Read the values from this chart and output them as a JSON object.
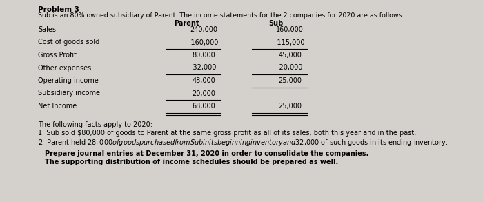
{
  "title": "Problem 3",
  "subtitle": "Sub is an 80% owned subsidiary of Parent. The income statements for the 2 companies for 2020 are as follows:",
  "col_header_parent": "Parent",
  "col_header_sub": "Sub",
  "row_labels": [
    "Sales",
    "Cost of goods sold",
    "Gross Profit",
    "Other expenses",
    "Operating income",
    "Subsidiary income",
    "Net Income"
  ],
  "parent_values": [
    "240,000",
    "-160,000",
    "80,000",
    "-32,000",
    "48,000",
    "20,000",
    "68,000"
  ],
  "sub_values": [
    "160,000",
    "-115,000",
    "45,000",
    "-20,000",
    "25,000",
    "",
    "25,000"
  ],
  "single_line_after_parent": [
    1,
    3,
    5
  ],
  "double_line_after_parent": [
    6
  ],
  "single_line_after_sub": [
    1,
    3,
    4
  ],
  "double_line_after_sub": [
    6
  ],
  "facts_header": "The following facts apply to 2020:",
  "fact1": "1  Sub sold $80,000 of goods to Parent at the same gross profit as all of its sales, both this year and in the past.",
  "fact2": "2  Parent held $28,000 of goods purchased from Sub in its beginning inventory and $32,000 of such goods in its ending inventory.",
  "instruction1": "Prepare journal entries at December 31, 2020 in order to consolidate the companies.",
  "instruction2": "The supporting distribution of income schedules should be prepared as well.",
  "bg_color": "#d4d0cb",
  "text_color": "#000000"
}
